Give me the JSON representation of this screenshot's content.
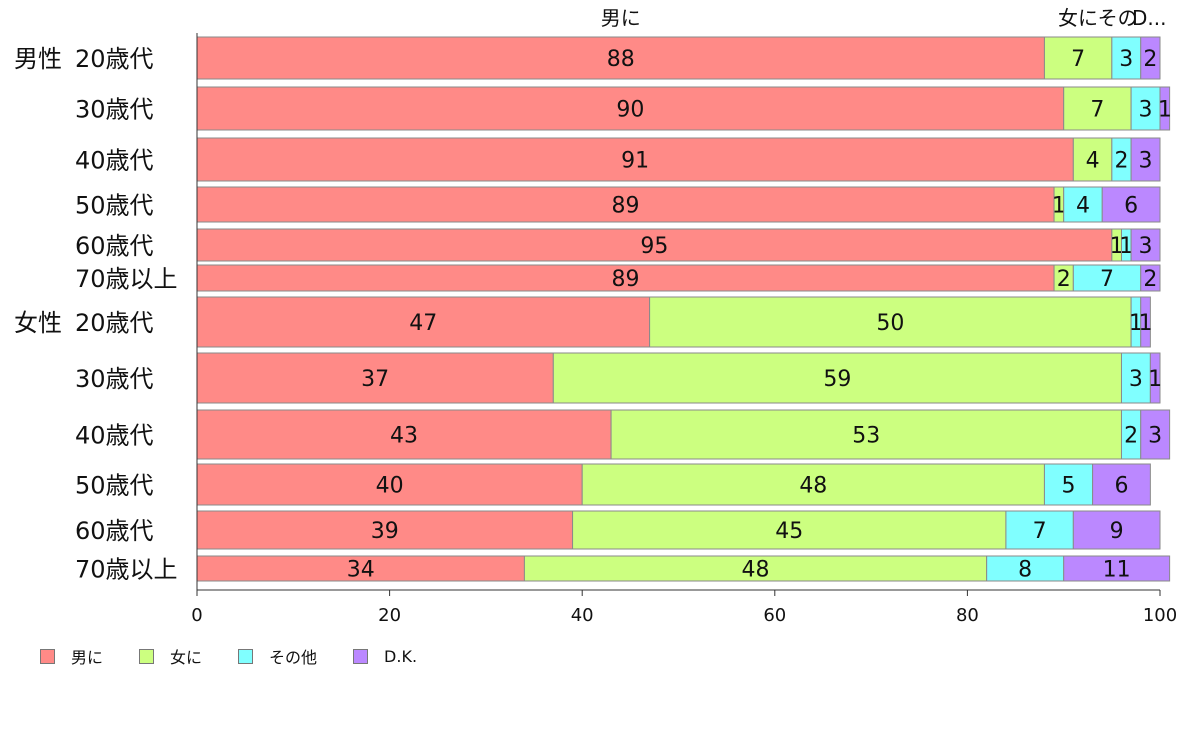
{
  "chart_data": {
    "type": "bar",
    "orientation": "horizontal",
    "stacked": true,
    "xlim": [
      0,
      100
    ],
    "xticks": [
      "0",
      "20",
      "40",
      "60",
      "80",
      "100"
    ],
    "top_labels": [
      "男に",
      "女にその",
      "D..."
    ],
    "legend_position": "bottom-left",
    "categories": [
      {
        "group": "男性",
        "label": "20歳代"
      },
      {
        "group": "",
        "label": "30歳代"
      },
      {
        "group": "",
        "label": "40歳代"
      },
      {
        "group": "",
        "label": "50歳代"
      },
      {
        "group": "",
        "label": "60歳代"
      },
      {
        "group": "",
        "label": "70歳以上"
      },
      {
        "group": "女性",
        "label": "20歳代"
      },
      {
        "group": "",
        "label": "30歳代"
      },
      {
        "group": "",
        "label": "40歳代"
      },
      {
        "group": "",
        "label": "50歳代"
      },
      {
        "group": "",
        "label": "60歳代"
      },
      {
        "group": "",
        "label": "70歳以上"
      }
    ],
    "series": [
      {
        "name": "男に",
        "color": "#ff8a87",
        "values": [
          88,
          90,
          91,
          89,
          95,
          89,
          47,
          37,
          43,
          40,
          39,
          34
        ]
      },
      {
        "name": "女に",
        "color": "#ccff80",
        "values": [
          7,
          7,
          4,
          1,
          1,
          2,
          50,
          59,
          53,
          48,
          45,
          48
        ]
      },
      {
        "name": "その他",
        "color": "#80ffff",
        "values": [
          3,
          3,
          2,
          4,
          1,
          7,
          1,
          3,
          2,
          5,
          7,
          8
        ]
      },
      {
        "name": "D.K.",
        "color": "#bb88ff",
        "values": [
          2,
          1,
          3,
          6,
          3,
          2,
          1,
          1,
          3,
          6,
          9,
          11
        ]
      }
    ]
  }
}
